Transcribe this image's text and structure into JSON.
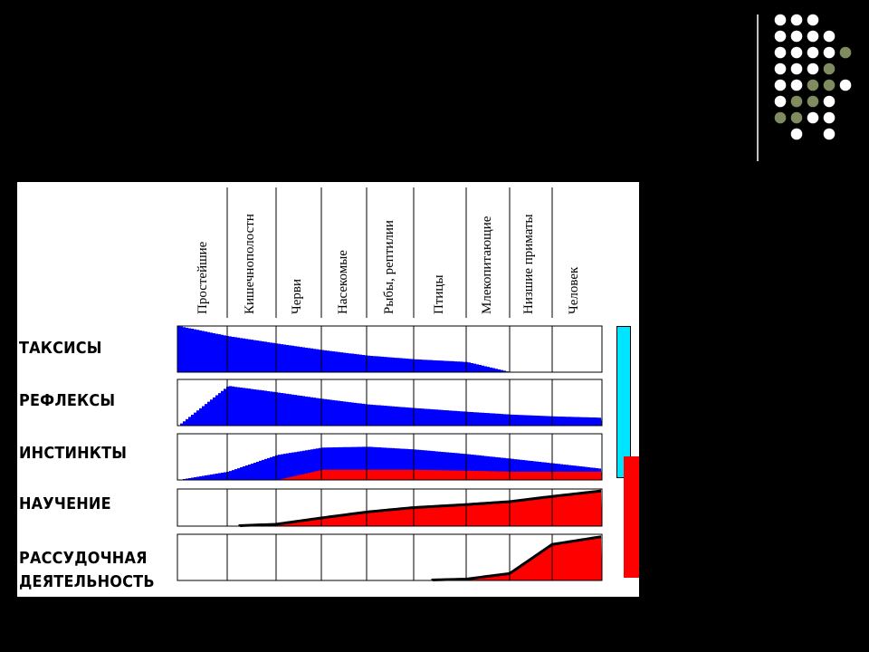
{
  "chart_data": {
    "type": "area",
    "title": "",
    "columns": [
      "Простейшие",
      "Кишечнополостн",
      "Черви",
      "Насекомые",
      "Рыбы, рептилии",
      "Птицы",
      "Млекопитающие",
      "Низшие приматы",
      "Человек"
    ],
    "rows": [
      {
        "name": "ТАКСИСЫ",
        "series": [
          {
            "color": "#0000ff",
            "values": [
              1.0,
              0.78,
              0.62,
              0.48,
              0.36,
              0.28,
              0.22,
              0.0,
              0.0,
              0.0
            ]
          }
        ]
      },
      {
        "name": "РЕФЛЕКСЫ",
        "series": [
          {
            "color": "#0000ff",
            "values": [
              0.0,
              0.86,
              0.72,
              0.58,
              0.46,
              0.38,
              0.3,
              0.24,
              0.2,
              0.17
            ]
          }
        ]
      },
      {
        "name": "ИНСТИНКТЫ",
        "series": [
          {
            "color": "#0000ff",
            "values": [
              0.0,
              0.18,
              0.54,
              0.7,
              0.72,
              0.66,
              0.56,
              0.46,
              0.36,
              0.24
            ]
          },
          {
            "color": "#ff0000",
            "values": [
              0.0,
              0.0,
              0.0,
              0.22,
              0.22,
              0.22,
              0.2,
              0.18,
              0.18,
              0.18
            ]
          }
        ]
      },
      {
        "name": "НАУЧЕНИЕ",
        "series": [
          {
            "color": "#ff0000",
            "values": [
              0.0,
              0.0,
              0.05,
              0.22,
              0.38,
              0.5,
              0.58,
              0.66,
              0.8,
              0.95
            ]
          }
        ]
      },
      {
        "name": "РАССУДОЧНАЯ ДЕЯТЕЛЬНОСТЬ",
        "series": [
          {
            "color": "#ff0000",
            "values": [
              0.0,
              0.0,
              0.0,
              0.0,
              0.0,
              0.0,
              0.03,
              0.15,
              0.78,
              0.95
            ]
          }
        ]
      }
    ]
  }
}
